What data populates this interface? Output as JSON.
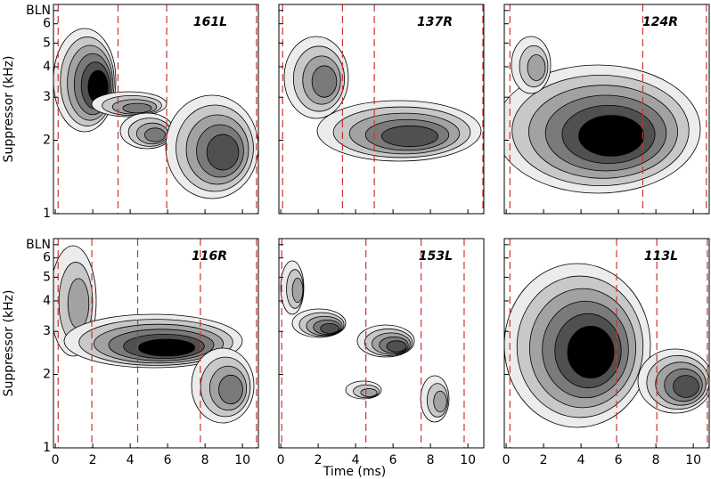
{
  "chart_data": [
    {
      "type": "contour",
      "title": "161L",
      "ylabel": "Suppressor (kHz)",
      "xlim": [
        -0.1,
        10.85
      ],
      "ylim": [
        1,
        7.2
      ],
      "log_y": true,
      "xticks": [
        0,
        2,
        4,
        6,
        8,
        10
      ],
      "yticks": [
        1,
        2,
        3,
        4,
        5,
        6,
        {
          "value": 6.8,
          "label": "BLN"
        }
      ],
      "markers": [
        0.15,
        3.35,
        5.95,
        10.75
      ],
      "marker_color": "#cc3333"
    },
    {
      "type": "contour",
      "title": "137R",
      "xlim": [
        -0.1,
        10.85
      ],
      "ylim": [
        1,
        7.2
      ],
      "log_y": true,
      "xticks": [
        0,
        2,
        4,
        6,
        8,
        10
      ],
      "yticks": [
        1,
        2,
        3,
        4,
        5,
        6,
        {
          "value": 6.8,
          "label": "BLN"
        }
      ],
      "markers": [
        0.1,
        3.3,
        5.0,
        10.8
      ],
      "marker_color": "#cc3333"
    },
    {
      "type": "contour",
      "title": "124R",
      "xlim": [
        -0.1,
        10.85
      ],
      "ylim": [
        1,
        7.2
      ],
      "log_y": true,
      "xticks": [
        0,
        2,
        4,
        6,
        8,
        10
      ],
      "yticks": [
        1,
        2,
        3,
        4,
        5,
        6,
        {
          "value": 6.8,
          "label": "BLN"
        }
      ],
      "markers": [
        0.2,
        7.3,
        10.7
      ],
      "marker_color": "#cc3333"
    },
    {
      "type": "contour",
      "title": "116R",
      "ylabel": "Suppressor (kHz)",
      "xlim": [
        -0.1,
        10.85
      ],
      "ylim": [
        1,
        7.2
      ],
      "log_y": true,
      "xticks": [
        0,
        2,
        4,
        6,
        8,
        10
      ],
      "yticks": [
        1,
        2,
        3,
        4,
        5,
        6,
        {
          "value": 6.8,
          "label": "BLN"
        }
      ],
      "markers": [
        0.15,
        1.95,
        4.4,
        7.75,
        10.75
      ],
      "marker_color": "#cc3333"
    },
    {
      "type": "contour",
      "title": "153L",
      "xlabel": "Time (ms)",
      "xlim": [
        -0.1,
        10.85
      ],
      "ylim": [
        1,
        7.2
      ],
      "log_y": true,
      "xticks": [
        0,
        2,
        4,
        6,
        8,
        10
      ],
      "yticks": [
        1,
        2,
        3,
        4,
        5,
        6,
        {
          "value": 6.8,
          "label": "BLN"
        }
      ],
      "markers": [
        0.05,
        4.55,
        7.5,
        9.8
      ],
      "marker_color": "#cc3333"
    },
    {
      "type": "contour",
      "title": "113L",
      "xlim": [
        -0.1,
        10.85
      ],
      "ylim": [
        1,
        7.2
      ],
      "log_y": true,
      "xticks": [
        0,
        2,
        4,
        6,
        8,
        10
      ],
      "yticks": [
        1,
        2,
        3,
        4,
        5,
        6,
        {
          "value": 6.8,
          "label": "BLN"
        }
      ],
      "markers": [
        0.2,
        5.9,
        8.05,
        10.75
      ],
      "marker_color": "#cc3333"
    }
  ]
}
